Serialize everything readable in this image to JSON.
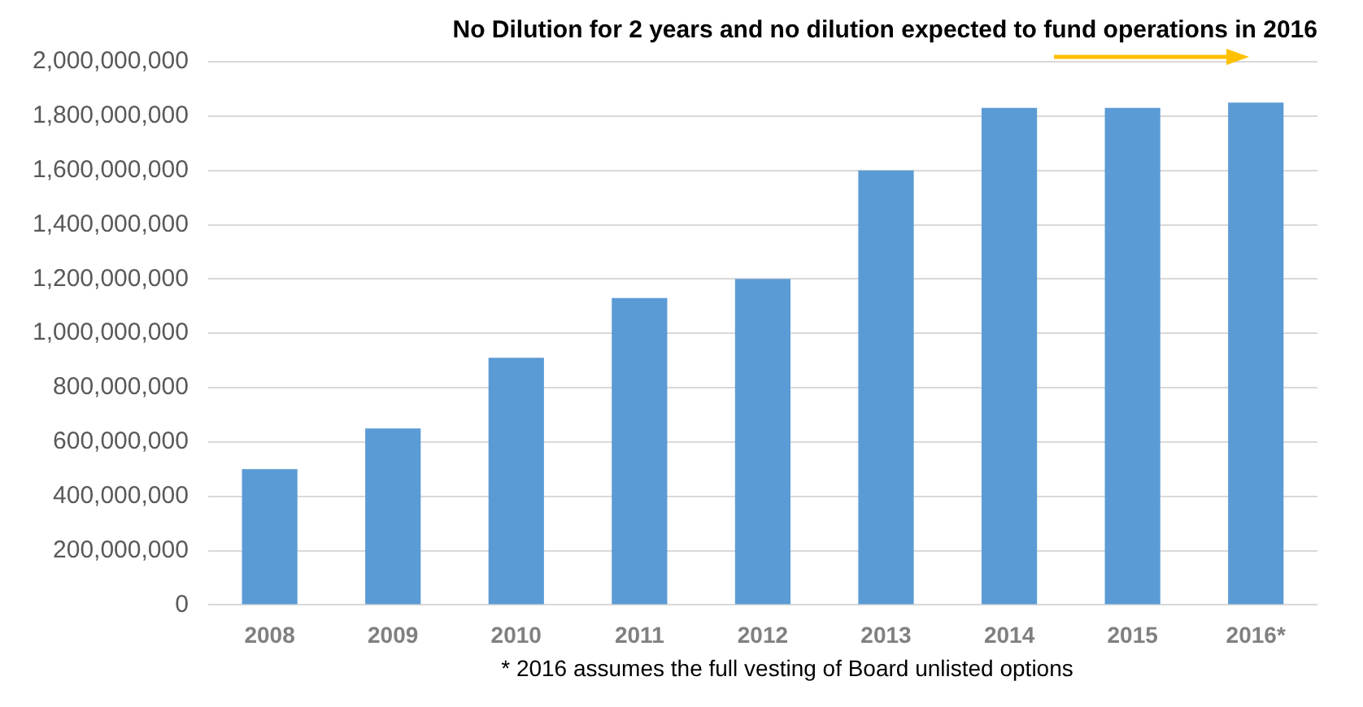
{
  "chart_data": {
    "type": "bar",
    "title": "No Dilution for 2 years and no dilution expected to fund operations in 2016",
    "categories": [
      "2008",
      "2009",
      "2010",
      "2011",
      "2012",
      "2013",
      "2014",
      "2015",
      "2016*"
    ],
    "values": [
      500000000,
      650000000,
      910000000,
      1130000000,
      1200000000,
      1600000000,
      1830000000,
      1830000000,
      1850000000
    ],
    "color": "#5b9bd5",
    "ylim": [
      0,
      2000000000
    ],
    "yticks": [
      0,
      {
        "value": 200000000,
        "label": "200,000,000"
      },
      {
        "value": 400000000,
        "label": "400,000,000"
      },
      {
        "value": 600000000,
        "label": "600,000,000"
      },
      {
        "value": 800000000,
        "label": "800,000,000"
      },
      {
        "value": 1000000000,
        "label": "1,000,000,000"
      },
      {
        "value": 1200000000,
        "label": "1,200,000,000"
      },
      {
        "value": 1400000000,
        "label": "1,400,000,000"
      },
      {
        "value": 1600000000,
        "label": "1,600,000,000"
      },
      {
        "value": 1800000000,
        "label": "1,800,000,000"
      },
      {
        "value": 2000000000,
        "label": "2,000,000,000"
      }
    ],
    "grid": "y",
    "annotations": [
      "* 2016 assumes the full vesting of Board unlisted options"
    ]
  }
}
